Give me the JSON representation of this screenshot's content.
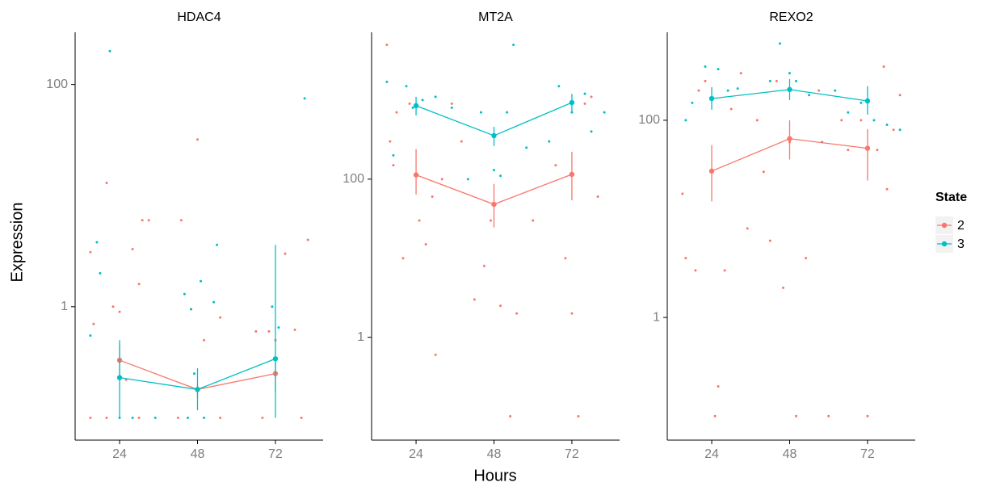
{
  "chart_data": [
    {
      "type": "line",
      "title": "HDAC4",
      "log_y": true,
      "xlim": [
        10.3,
        86.7
      ],
      "xticks": [
        24,
        48,
        72
      ],
      "ylim": [
        0.063,
        295
      ],
      "yticks": [
        1,
        100
      ],
      "series": [
        {
          "name": "2",
          "color": "#f8766d",
          "x": [
            24,
            48,
            72
          ],
          "values": [
            0.33,
            0.18,
            0.25
          ],
          "lower": [
            0.22,
            0.15,
            0.17
          ],
          "upper": [
            0.45,
            0.2,
            0.33
          ],
          "points": {
            "x": [
              15,
              16,
              20,
              22,
              24,
              26,
              28,
              30,
              31,
              33,
              43,
              46,
              48,
              50,
              55,
              66,
              70,
              72,
              75,
              78,
              15,
              20,
              30,
              42,
              55,
              68,
              80,
              82
            ],
            "values": [
              3.1,
              0.7,
              13,
              1,
              0.9,
              0.22,
              3.3,
              1.6,
              6,
              6,
              6,
              0.95,
              32,
              0.5,
              0.8,
              0.6,
              0.6,
              0.5,
              3,
              0.62,
              0.1,
              0.1,
              0.1,
              0.1,
              0.1,
              0.1,
              0.1,
              4
            ]
          }
        },
        {
          "name": "3",
          "color": "#00bfc4",
          "x": [
            24,
            48,
            72
          ],
          "values": [
            0.23,
            0.18,
            0.34
          ],
          "lower": [
            0.1,
            0.117,
            0.1
          ],
          "upper": [
            0.5,
            0.28,
            3.6
          ],
          "points": {
            "x": [
              15,
              17,
              18,
              21,
              24,
              28,
              44,
              46,
              49,
              50,
              53,
              54,
              47,
              71,
              73,
              81,
              45,
              35
            ],
            "values": [
              0.55,
              3.8,
              2,
              200,
              0.1,
              0.1,
              1.3,
              0.95,
              1.7,
              0.1,
              1.1,
              3.6,
              0.25,
              1,
              0.65,
              75,
              0.1,
              0.1
            ]
          }
        }
      ]
    },
    {
      "type": "line",
      "title": "MT2A",
      "log_y": true,
      "xlim": [
        10.3,
        86.7
      ],
      "xticks": [
        24,
        48,
        72
      ],
      "ylim": [
        0.05,
        7200
      ],
      "yticks": [
        1,
        100
      ],
      "series": [
        {
          "name": "2",
          "color": "#f8766d",
          "x": [
            24,
            48,
            72
          ],
          "values": [
            113,
            48,
            115
          ],
          "lower": [
            64,
            24.5,
            54
          ],
          "upper": [
            240,
            87,
            222
          ],
          "points": {
            "x": [
              15,
              16,
              17,
              18,
              20,
              22,
              25,
              27,
              29,
              30,
              32,
              35,
              38,
              42,
              45,
              47,
              50,
              53,
              55,
              60,
              67,
              70,
              72,
              74,
              76,
              80,
              78
            ],
            "values": [
              5000,
              300,
              150,
              700,
              10,
              900,
              30,
              15,
              60,
              0.6,
              100,
              900,
              300,
              3,
              8,
              30,
              2.5,
              0.1,
              2,
              30,
              150,
              10,
              2,
              0.1,
              900,
              60,
              1100
            ]
          }
        },
        {
          "name": "3",
          "color": "#00bfc4",
          "x": [
            24,
            48,
            72
          ],
          "values": [
            850,
            355,
            930
          ],
          "lower": [
            640,
            262,
            720
          ],
          "upper": [
            1100,
            460,
            1200
          ],
          "points": {
            "x": [
              15,
              17,
              21,
              23,
              26,
              30,
              35,
              40,
              44,
              48,
              50,
              52,
              54,
              58,
              65,
              68,
              72,
              76,
              82,
              78
            ],
            "values": [
              1700,
              200,
              1500,
              800,
              1000,
              1100,
              800,
              100,
              700,
              130,
              110,
              700,
              5000,
              250,
              300,
              1500,
              700,
              1200,
              700,
              400
            ]
          }
        }
      ]
    },
    {
      "type": "line",
      "title": "REXO2",
      "log_y": true,
      "xlim": [
        10.3,
        86.7
      ],
      "xticks": [
        24,
        48,
        72
      ],
      "ylim": [
        0.057,
        780
      ],
      "yticks": [
        1,
        100
      ],
      "series": [
        {
          "name": "2",
          "color": "#f8766d",
          "x": [
            24,
            48,
            72
          ],
          "values": [
            30.5,
            65,
            52
          ],
          "lower": [
            15,
            40,
            24.5
          ],
          "upper": [
            56,
            100,
            81
          ],
          "points": {
            "x": [
              15,
              16,
              19,
              20,
              22,
              25,
              26,
              28,
              30,
              33,
              35,
              38,
              40,
              42,
              44,
              46,
              48,
              50,
              53,
              57,
              60,
              64,
              66,
              70,
              72,
              75,
              78,
              80,
              82,
              77
            ],
            "values": [
              18,
              4,
              3,
              200,
              250,
              0.1,
              0.2,
              3,
              130,
              300,
              8,
              100,
              30,
              6,
              250,
              2,
              60,
              0.1,
              4,
              200,
              0.1,
              100,
              50,
              100,
              0.1,
              50,
              20,
              80,
              180,
              350
            ]
          }
        },
        {
          "name": "3",
          "color": "#00bfc4",
          "x": [
            24,
            48,
            72
          ],
          "values": [
            166,
            205,
            157
          ],
          "lower": [
            128,
            160,
            114
          ],
          "upper": [
            217,
            262,
            222
          ],
          "points": {
            "x": [
              16,
              18,
              22,
              24,
              26,
              29,
              32,
              42,
              45,
              48,
              50,
              54,
              58,
              62,
              66,
              70,
              74,
              78,
              82
            ],
            "values": [
              100,
              150,
              350,
              170,
              330,
              200,
              210,
              250,
              600,
              300,
              250,
              180,
              60,
              200,
              120,
              150,
              100,
              90,
              80
            ]
          }
        }
      ]
    }
  ],
  "x_label": "Hours",
  "y_label": "Expression",
  "legend_title": "State"
}
